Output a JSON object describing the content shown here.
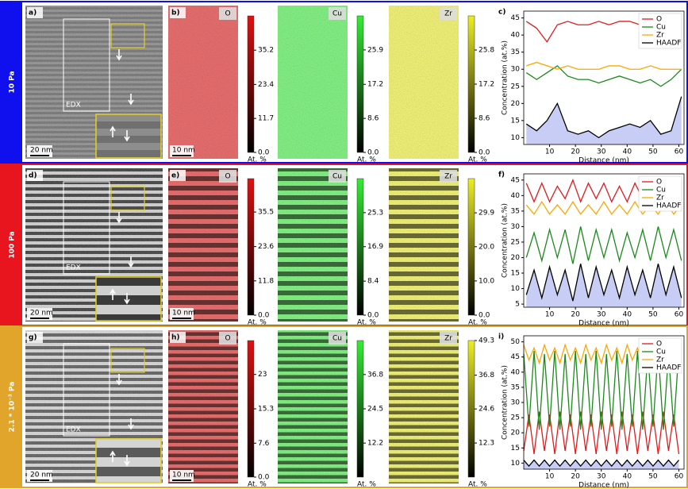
{
  "rows": [
    {
      "label": "10 Pa",
      "color": "#1010ee",
      "letters": [
        "a)",
        "b)",
        "c)"
      ],
      "scale_bar": "20 nm",
      "map_scale_bar": "10 nm",
      "edx": "EDX",
      "maps": [
        {
          "element": "O",
          "color": "#e01010",
          "unit": "At. %",
          "lim": [
            0,
            47
          ],
          "ticks": [
            {
              "value": 0,
              "label": "0.0"
            },
            11.7,
            23.4,
            35.2
          ]
        },
        {
          "element": "Cu",
          "color": "#33ee33",
          "unit": "At. %",
          "lim": [
            0,
            34.5
          ],
          "ticks": [
            {
              "value": 0,
              "label": "0.0"
            },
            8.6,
            17.2,
            25.9
          ]
        },
        {
          "element": "Zr",
          "color": "#eeee22",
          "unit": "At. %",
          "lim": [
            0,
            34.4
          ],
          "ticks": [
            {
              "value": 0,
              "label": "0.0"
            },
            8.6,
            17.2,
            25.8
          ]
        }
      ]
    },
    {
      "label": "100 Pa",
      "color": "#e8141e",
      "letters": [
        "d)",
        "e)",
        "f)"
      ],
      "scale_bar": "20 nm",
      "map_scale_bar": "10 nm",
      "edx": "EDX",
      "maps": [
        {
          "element": "O",
          "color": "#e01010",
          "unit": "At. %",
          "lim": [
            0,
            47
          ],
          "ticks": [
            {
              "value": 0,
              "label": "0.0"
            },
            11.8,
            23.6,
            35.5
          ]
        },
        {
          "element": "Cu",
          "color": "#33ee33",
          "unit": "At. %",
          "lim": [
            0,
            33.7
          ],
          "ticks": [
            {
              "value": 0,
              "label": "0.0"
            },
            8.4,
            16.9,
            25.3
          ]
        },
        {
          "element": "Zr",
          "color": "#eeee22",
          "unit": "At. %",
          "lim": [
            0,
            39.9
          ],
          "ticks": [
            {
              "value": 0,
              "label": "0.0"
            },
            {
              "value": 10,
              "label": "10.0"
            },
            {
              "value": 20,
              "label": "20.0"
            },
            29.9
          ]
        }
      ]
    },
    {
      "label": "2.1 * 10⁻³ Pa",
      "color": "#e0a52a",
      "letters": [
        "g)",
        "h)",
        "i)"
      ],
      "scale_bar": "20 nm",
      "map_scale_bar": "10 nm",
      "edx": "EDX",
      "maps": [
        {
          "element": "O",
          "color": "#e01010",
          "unit": "At. %",
          "lim": [
            0,
            30.6
          ],
          "ticks": [
            {
              "value": 0,
              "label": "0.0"
            },
            7.6,
            15.3,
            23.0
          ]
        },
        {
          "element": "Cu",
          "color": "#33ee33",
          "unit": "At. %",
          "lim": [
            0,
            49
          ],
          "ticks": [
            12.2,
            24.5,
            36.8
          ]
        },
        {
          "element": "Zr",
          "color": "#eeee22",
          "unit": "At. %",
          "lim": [
            0,
            49.3
          ],
          "ticks": [
            12.3,
            24.6,
            36.8,
            49.3
          ]
        }
      ]
    }
  ],
  "chart_data": [
    {
      "type": "line",
      "x_label": "Distance (nm)",
      "y_label": "Concentration (at.%)",
      "legend": "upper right",
      "xlim": [
        0,
        62
      ],
      "ylim": [
        8,
        47
      ],
      "xticks": [
        10,
        20,
        30,
        40,
        50,
        60
      ],
      "yticks": [
        10,
        15,
        20,
        25,
        30,
        35,
        40,
        45
      ],
      "x": [
        1,
        5,
        9,
        13,
        17,
        21,
        25,
        29,
        33,
        37,
        41,
        45,
        49,
        53,
        57,
        61
      ],
      "series": [
        {
          "name": "O",
          "color": "#e31a1c",
          "values": [
            44,
            42,
            38,
            43,
            44,
            43,
            43,
            44,
            43,
            44,
            44,
            43,
            44,
            44,
            43,
            44
          ]
        },
        {
          "name": "Cu",
          "color": "#1a8a1a",
          "values": [
            29,
            27,
            29,
            31,
            28,
            27,
            27,
            26,
            27,
            28,
            27,
            26,
            27,
            25,
            27,
            30
          ]
        },
        {
          "name": "Zr",
          "color": "#ffa500",
          "values": [
            31,
            32,
            31,
            30,
            31,
            30,
            30,
            30,
            31,
            31,
            30,
            30,
            31,
            30,
            30,
            30
          ]
        },
        {
          "name": "HAADF",
          "color": "#000000",
          "fill_color": "#c8cdf5",
          "values": [
            14,
            12,
            15,
            20,
            12,
            11,
            12,
            10,
            12,
            13,
            14,
            13,
            15,
            11,
            12,
            22
          ]
        }
      ]
    },
    {
      "type": "line",
      "x_label": "Distance (nm)",
      "y_label": "Concentration (at.%)",
      "legend": "upper right",
      "xlim": [
        0,
        62
      ],
      "ylim": [
        4,
        47
      ],
      "xticks": [
        10,
        20,
        30,
        40,
        50,
        60
      ],
      "yticks": [
        5,
        10,
        15,
        20,
        25,
        30,
        35,
        40,
        45
      ],
      "x": [
        1,
        4,
        7,
        10,
        13,
        16,
        19,
        22,
        25,
        28,
        31,
        34,
        37,
        40,
        43,
        46,
        49,
        52,
        55,
        58,
        61
      ],
      "series": [
        {
          "name": "O",
          "color": "#e31a1c",
          "values": [
            44,
            38,
            44,
            38,
            43,
            39,
            45,
            38,
            44,
            39,
            44,
            38,
            43,
            38,
            44,
            39,
            43,
            38,
            44,
            39,
            44
          ]
        },
        {
          "name": "Cu",
          "color": "#1a8a1a",
          "values": [
            20,
            28,
            19,
            29,
            20,
            29,
            18,
            30,
            19,
            29,
            20,
            29,
            19,
            28,
            20,
            29,
            19,
            30,
            20,
            29,
            19
          ]
        },
        {
          "name": "Zr",
          "color": "#ffa500",
          "values": [
            37,
            34,
            38,
            34,
            37,
            34,
            38,
            34,
            37,
            34,
            38,
            34,
            37,
            34,
            38,
            34,
            37,
            34,
            38,
            34,
            37
          ]
        },
        {
          "name": "HAADF",
          "color": "#000000",
          "fill_color": "#c8cdf5",
          "values": [
            8,
            16,
            7,
            17,
            8,
            16,
            6,
            18,
            7,
            17,
            8,
            16,
            7,
            17,
            8,
            16,
            7,
            18,
            8,
            17,
            7
          ]
        }
      ]
    },
    {
      "type": "line",
      "x_label": "Distance (nm)",
      "y_label": "Concentration (at.%)",
      "legend": "upper right",
      "xlim": [
        0,
        62
      ],
      "ylim": [
        8,
        52
      ],
      "xticks": [
        10,
        20,
        30,
        40,
        50,
        60
      ],
      "yticks": [
        10,
        15,
        20,
        25,
        30,
        35,
        40,
        45,
        50
      ],
      "x": [
        0,
        2,
        4,
        6,
        8,
        10,
        12,
        14,
        16,
        18,
        20,
        22,
        24,
        26,
        28,
        30,
        32,
        34,
        36,
        38,
        40,
        42,
        44,
        46,
        48,
        50,
        52,
        54,
        56,
        58,
        60
      ],
      "series": [
        {
          "name": "O",
          "color": "#e31a1c",
          "values": [
            14,
            26,
            13,
            27,
            14,
            26,
            13,
            27,
            14,
            26,
            13,
            27,
            14,
            26,
            13,
            27,
            14,
            26,
            13,
            27,
            14,
            26,
            13,
            27,
            14,
            26,
            13,
            27,
            14,
            26,
            13
          ]
        },
        {
          "name": "Cu",
          "color": "#1a8a1a",
          "values": [
            46,
            22,
            47,
            21,
            46,
            22,
            47,
            21,
            46,
            22,
            47,
            21,
            46,
            22,
            47,
            21,
            46,
            22,
            47,
            21,
            46,
            22,
            47,
            21,
            46,
            22,
            47,
            21,
            46,
            22,
            47
          ]
        },
        {
          "name": "Zr",
          "color": "#ffa500",
          "values": [
            49,
            44,
            48,
            43,
            49,
            44,
            48,
            43,
            49,
            44,
            48,
            43,
            49,
            44,
            48,
            43,
            49,
            44,
            48,
            43,
            49,
            44,
            48,
            43,
            49,
            44,
            48,
            43,
            49,
            44,
            48
          ]
        },
        {
          "name": "HAADF",
          "color": "#000000",
          "fill_color": "#c8cdf5",
          "values": [
            11,
            9,
            11,
            9,
            11,
            9,
            11,
            9,
            11,
            9,
            11,
            9,
            11,
            9,
            11,
            9,
            11,
            9,
            11,
            9,
            11,
            9,
            11,
            9,
            11,
            9,
            11,
            9,
            11,
            9,
            11
          ]
        }
      ]
    }
  ]
}
